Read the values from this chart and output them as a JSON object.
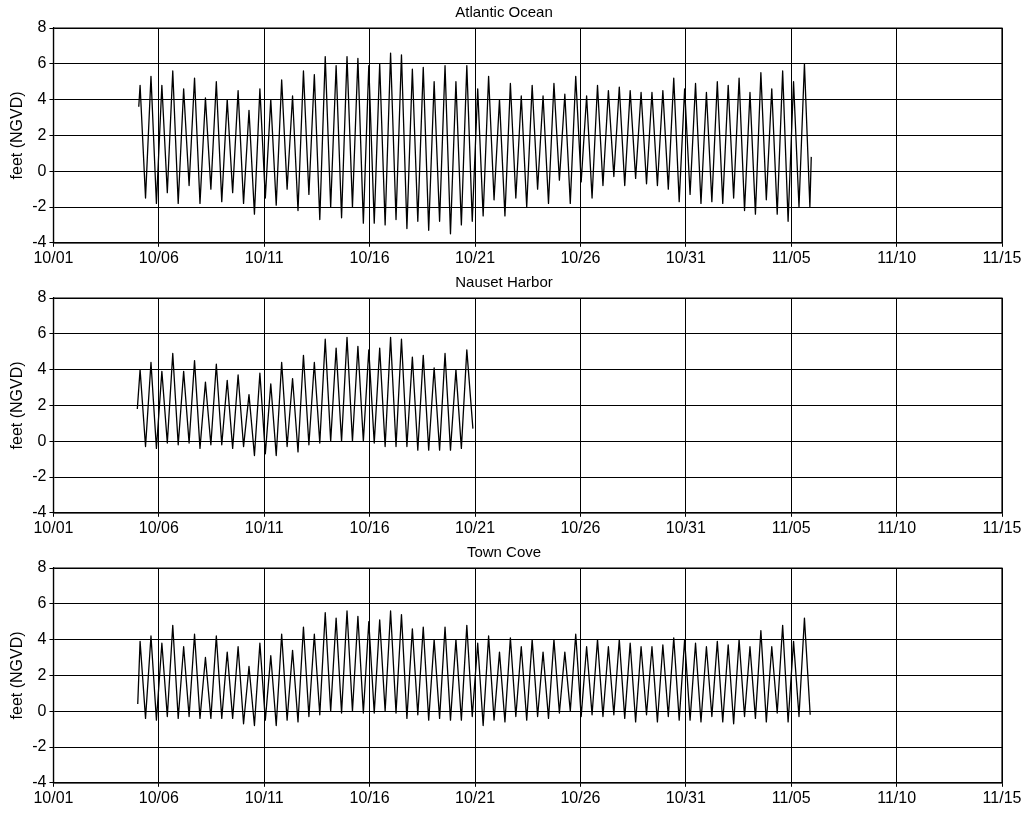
{
  "chart_data": [
    {
      "type": "line",
      "title": "Atlantic Ocean",
      "ylabel": "feet (NGVD)",
      "xlim": [
        "--10-01",
        "--11-15"
      ],
      "xticks": [
        {
          "value": "--10-01",
          "label": "10/01"
        },
        {
          "value": "--10-06",
          "label": "10/06"
        },
        {
          "value": "--10-11",
          "label": "10/11"
        },
        {
          "value": "--10-16",
          "label": "10/16"
        },
        {
          "value": "--10-21",
          "label": "10/21"
        },
        {
          "value": "--10-26",
          "label": "10/26"
        },
        {
          "value": "--10-31",
          "label": "10/31"
        },
        {
          "value": "--11-05",
          "label": "11/05"
        },
        {
          "value": "--11-10",
          "label": "11/10"
        },
        {
          "value": "--11-15",
          "label": "11/15"
        }
      ],
      "ylim": [
        -4,
        8
      ],
      "yticks": [
        -4,
        -2,
        0,
        2,
        4,
        6,
        8
      ],
      "grid": true,
      "marker": "none",
      "line_style": "solid",
      "series": [
        {
          "color": "#000000",
          "x": [
            "--10-05T01:10",
            "--10-05T02:40",
            "--10-05T08:52",
            "--10-05T15:04",
            "--10-05T21:16",
            "--10-06T03:28",
            "--10-06T09:40",
            "--10-06T15:52",
            "--10-06T22:04",
            "--10-07T04:16",
            "--10-07T10:28",
            "--10-07T16:40",
            "--10-07T22:52",
            "--10-08T05:04",
            "--10-08T11:16",
            "--10-08T17:28",
            "--10-08T23:40",
            "--10-09T05:52",
            "--10-09T12:04",
            "--10-09T18:16",
            "--10-10T00:28",
            "--10-10T06:40",
            "--10-10T12:52",
            "--10-10T19:04",
            "--10-11T01:16",
            "--10-11T07:28",
            "--10-11T13:40",
            "--10-11T19:52",
            "--10-12T02:04",
            "--10-12T08:16",
            "--10-12T14:28",
            "--10-12T20:40",
            "--10-13T02:52",
            "--10-13T09:04",
            "--10-13T15:16",
            "--10-13T21:28",
            "--10-14T03:40",
            "--10-14T09:52",
            "--10-14T16:04",
            "--10-14T22:16",
            "--10-15T04:28",
            "--10-15T10:40",
            "--10-15T16:52",
            "--10-15T23:04",
            "--10-16T05:16",
            "--10-16T11:28",
            "--10-16T17:40",
            "--10-16T23:52",
            "--10-17T06:04",
            "--10-17T12:16",
            "--10-17T18:28",
            "--10-18T00:40",
            "--10-18T06:52",
            "--10-18T13:04",
            "--10-18T19:16",
            "--10-19T01:28",
            "--10-19T07:40",
            "--10-19T13:52",
            "--10-19T20:04",
            "--10-20T02:16",
            "--10-20T08:28",
            "--10-20T14:40",
            "--10-20T20:52",
            "--10-21T03:04",
            "--10-21T09:16",
            "--10-21T15:28",
            "--10-21T21:40",
            "--10-22T03:52",
            "--10-22T10:04",
            "--10-22T16:16",
            "--10-22T22:28",
            "--10-23T04:40",
            "--10-23T10:52",
            "--10-23T17:04",
            "--10-23T23:16",
            "--10-24T05:28",
            "--10-24T11:40",
            "--10-24T17:52",
            "--10-25T00:04",
            "--10-25T06:16",
            "--10-25T12:28",
            "--10-25T18:40",
            "--10-26T00:52",
            "--10-26T07:04",
            "--10-26T13:16",
            "--10-26T19:28",
            "--10-27T01:40",
            "--10-27T07:52",
            "--10-27T14:04",
            "--10-27T20:16",
            "--10-28T02:28",
            "--10-28T08:40",
            "--10-28T14:52",
            "--10-28T21:04",
            "--10-29T03:16",
            "--10-29T09:28",
            "--10-29T15:40",
            "--10-29T21:52",
            "--10-30T04:04",
            "--10-30T10:16",
            "--10-30T16:28",
            "--10-30T22:40",
            "--10-31T04:52",
            "--10-31T11:04",
            "--10-31T17:16",
            "--10-31T23:28",
            "--11-01T05:40",
            "--11-01T11:52",
            "--11-01T18:04",
            "--11-02T00:16",
            "--11-02T06:28",
            "--11-02T12:40",
            "--11-02T18:52",
            "--11-03T01:04",
            "--11-03T07:16",
            "--11-03T13:28",
            "--11-03T19:40",
            "--11-04T01:52",
            "--11-04T08:04",
            "--11-04T14:16",
            "--11-04T20:28",
            "--11-05T02:40",
            "--11-05T08:52",
            "--11-05T15:04",
            "--11-05T21:16",
            "--11-05T22:50"
          ],
          "values": [
            3.6,
            4.8,
            -1.5,
            5.3,
            -1.8,
            4.8,
            -1.2,
            5.6,
            -1.8,
            4.6,
            -0.8,
            5.2,
            -1.8,
            4.1,
            -1.0,
            5.0,
            -1.7,
            4.0,
            -1.2,
            4.5,
            -1.8,
            3.4,
            -2.4,
            4.6,
            -1.5,
            4.0,
            -1.9,
            5.1,
            -1.0,
            4.2,
            -2.2,
            5.6,
            -1.3,
            5.4,
            -2.7,
            6.4,
            -2.0,
            5.9,
            -2.6,
            6.4,
            -2.0,
            6.3,
            -2.9,
            5.9,
            -2.9,
            6.0,
            -3.0,
            6.6,
            -2.7,
            6.5,
            -3.2,
            5.7,
            -2.8,
            5.8,
            -3.3,
            5.0,
            -2.8,
            5.9,
            -3.5,
            5.0,
            -3.0,
            5.9,
            -2.8,
            4.6,
            -2.5,
            5.3,
            -1.6,
            4.0,
            -2.5,
            4.9,
            -1.5,
            4.2,
            -2.0,
            4.8,
            -1.0,
            4.2,
            -1.8,
            4.9,
            -0.5,
            4.3,
            -1.8,
            5.3,
            -0.6,
            4.2,
            -1.5,
            4.8,
            -0.8,
            4.5,
            -0.3,
            4.7,
            -0.8,
            4.5,
            -0.4,
            4.4,
            -0.7,
            4.4,
            -0.8,
            4.5,
            -1.0,
            5.2,
            -1.7,
            4.6,
            -1.3,
            4.9,
            -1.8,
            4.4,
            -1.7,
            5.0,
            -1.8,
            4.8,
            -1.5,
            5.2,
            -2.2,
            4.4,
            -2.4,
            5.5,
            -1.6,
            4.6,
            -2.4,
            5.6,
            -2.8,
            5.0,
            -2.0,
            6.0,
            -2.0,
            0.8
          ]
        }
      ]
    },
    {
      "type": "line",
      "title": "Nauset Harbor",
      "ylabel": "feet (NGVD)",
      "xlim": [
        "--10-01",
        "--11-15"
      ],
      "xticks": [
        {
          "value": "--10-01",
          "label": "10/01"
        },
        {
          "value": "--10-06",
          "label": "10/06"
        },
        {
          "value": "--10-11",
          "label": "10/11"
        },
        {
          "value": "--10-16",
          "label": "10/16"
        },
        {
          "value": "--10-21",
          "label": "10/21"
        },
        {
          "value": "--10-26",
          "label": "10/26"
        },
        {
          "value": "--10-31",
          "label": "10/31"
        },
        {
          "value": "--11-05",
          "label": "11/05"
        },
        {
          "value": "--11-10",
          "label": "11/10"
        },
        {
          "value": "--11-15",
          "label": "11/15"
        }
      ],
      "ylim": [
        -4,
        8
      ],
      "yticks": [
        -4,
        -2,
        0,
        2,
        4,
        6,
        8
      ],
      "grid": true,
      "marker": "none",
      "line_style": "solid",
      "series": [
        {
          "color": "#000000",
          "x": [
            "--10-04T23:30",
            "--10-05T02:40",
            "--10-05T08:52",
            "--10-05T15:04",
            "--10-05T21:16",
            "--10-06T03:28",
            "--10-06T09:40",
            "--10-06T15:52",
            "--10-06T22:04",
            "--10-07T04:16",
            "--10-07T10:28",
            "--10-07T16:40",
            "--10-07T22:52",
            "--10-08T05:04",
            "--10-08T11:16",
            "--10-08T17:28",
            "--10-08T23:40",
            "--10-09T05:52",
            "--10-09T12:04",
            "--10-09T18:16",
            "--10-10T00:28",
            "--10-10T06:40",
            "--10-10T12:52",
            "--10-10T19:04",
            "--10-11T01:16",
            "--10-11T07:28",
            "--10-11T13:40",
            "--10-11T19:52",
            "--10-12T02:04",
            "--10-12T08:16",
            "--10-12T14:28",
            "--10-12T20:40",
            "--10-13T02:52",
            "--10-13T09:04",
            "--10-13T15:16",
            "--10-13T21:28",
            "--10-14T03:40",
            "--10-14T09:52",
            "--10-14T16:04",
            "--10-14T22:16",
            "--10-15T04:28",
            "--10-15T10:40",
            "--10-15T16:52",
            "--10-15T23:04",
            "--10-16T05:16",
            "--10-16T11:28",
            "--10-16T17:40",
            "--10-16T23:52",
            "--10-17T06:04",
            "--10-17T12:16",
            "--10-17T18:28",
            "--10-18T00:40",
            "--10-18T06:52",
            "--10-18T13:04",
            "--10-18T19:16",
            "--10-19T01:28",
            "--10-19T07:40",
            "--10-19T13:52",
            "--10-19T20:04",
            "--10-20T02:16",
            "--10-20T08:28",
            "--10-20T14:40",
            "--10-20T21:36"
          ],
          "values": [
            1.8,
            4.0,
            -0.3,
            4.4,
            -0.4,
            3.9,
            -0.1,
            4.9,
            -0.2,
            3.9,
            -0.1,
            4.5,
            -0.4,
            3.3,
            -0.2,
            4.3,
            -0.2,
            3.4,
            -0.4,
            3.7,
            -0.3,
            2.6,
            -0.8,
            3.8,
            -0.7,
            3.2,
            -0.8,
            4.4,
            -0.3,
            3.5,
            -0.6,
            4.8,
            -0.2,
            4.4,
            -0.1,
            5.7,
            0.0,
            5.2,
            0.0,
            5.8,
            0.0,
            5.3,
            0.0,
            5.1,
            -0.1,
            5.2,
            -0.3,
            5.8,
            -0.3,
            5.7,
            -0.3,
            4.7,
            -0.5,
            4.8,
            -0.5,
            4.1,
            -0.5,
            4.9,
            -0.5,
            4.0,
            -0.4,
            5.1,
            0.7
          ]
        }
      ]
    },
    {
      "type": "line",
      "title": "Town Cove",
      "ylabel": "feet (NGVD)",
      "xlim": [
        "--10-01",
        "--11-15"
      ],
      "xticks": [
        {
          "value": "--10-01",
          "label": "10/01"
        },
        {
          "value": "--10-06",
          "label": "10/06"
        },
        {
          "value": "--10-11",
          "label": "10/11"
        },
        {
          "value": "--10-16",
          "label": "10/16"
        },
        {
          "value": "--10-21",
          "label": "10/21"
        },
        {
          "value": "--10-26",
          "label": "10/26"
        },
        {
          "value": "--10-31",
          "label": "10/31"
        },
        {
          "value": "--11-05",
          "label": "11/05"
        },
        {
          "value": "--11-10",
          "label": "11/10"
        },
        {
          "value": "--11-15",
          "label": "11/15"
        }
      ],
      "ylim": [
        -4,
        8
      ],
      "yticks": [
        -4,
        -2,
        0,
        2,
        4,
        6,
        8
      ],
      "grid": true,
      "marker": "none",
      "line_style": "solid",
      "series": [
        {
          "color": "#000000",
          "x": [
            "--10-05T00:00",
            "--10-05T02:40",
            "--10-05T08:52",
            "--10-05T15:04",
            "--10-05T21:16",
            "--10-06T03:28",
            "--10-06T09:40",
            "--10-06T15:52",
            "--10-06T22:04",
            "--10-07T04:16",
            "--10-07T10:28",
            "--10-07T16:40",
            "--10-07T22:52",
            "--10-08T05:04",
            "--10-08T11:16",
            "--10-08T17:28",
            "--10-08T23:40",
            "--10-09T05:52",
            "--10-09T12:04",
            "--10-09T18:16",
            "--10-10T00:28",
            "--10-10T06:40",
            "--10-10T12:52",
            "--10-10T19:04",
            "--10-11T01:16",
            "--10-11T07:28",
            "--10-11T13:40",
            "--10-11T19:52",
            "--10-12T02:04",
            "--10-12T08:16",
            "--10-12T14:28",
            "--10-12T20:40",
            "--10-13T02:52",
            "--10-13T09:04",
            "--10-13T15:16",
            "--10-13T21:28",
            "--10-14T03:40",
            "--10-14T09:52",
            "--10-14T16:04",
            "--10-14T22:16",
            "--10-15T04:28",
            "--10-15T10:40",
            "--10-15T16:52",
            "--10-15T23:04",
            "--10-16T05:16",
            "--10-16T11:28",
            "--10-16T17:40",
            "--10-16T23:52",
            "--10-17T06:04",
            "--10-17T12:16",
            "--10-17T18:28",
            "--10-18T00:40",
            "--10-18T06:52",
            "--10-18T13:04",
            "--10-18T19:16",
            "--10-19T01:28",
            "--10-19T07:40",
            "--10-19T13:52",
            "--10-19T20:04",
            "--10-20T02:16",
            "--10-20T08:28",
            "--10-20T14:40",
            "--10-20T20:52",
            "--10-21T03:04",
            "--10-21T09:16",
            "--10-21T15:28",
            "--10-21T21:40",
            "--10-22T03:52",
            "--10-22T10:04",
            "--10-22T16:16",
            "--10-22T22:28",
            "--10-23T04:40",
            "--10-23T10:52",
            "--10-23T17:04",
            "--10-23T23:16",
            "--10-24T05:28",
            "--10-24T11:40",
            "--10-24T17:52",
            "--10-25T00:04",
            "--10-25T06:16",
            "--10-25T12:28",
            "--10-25T18:40",
            "--10-26T00:52",
            "--10-26T07:04",
            "--10-26T13:16",
            "--10-26T19:28",
            "--10-27T01:40",
            "--10-27T07:52",
            "--10-27T14:04",
            "--10-27T20:16",
            "--10-28T02:28",
            "--10-28T08:40",
            "--10-28T14:52",
            "--10-28T21:04",
            "--10-29T03:16",
            "--10-29T09:28",
            "--10-29T15:40",
            "--10-29T21:52",
            "--10-30T04:04",
            "--10-30T10:16",
            "--10-30T16:28",
            "--10-30T22:40",
            "--10-31T04:52",
            "--10-31T11:04",
            "--10-31T17:16",
            "--10-31T23:28",
            "--11-01T05:40",
            "--11-01T11:52",
            "--11-01T18:04",
            "--11-02T00:16",
            "--11-02T06:28",
            "--11-02T12:40",
            "--11-02T18:52",
            "--11-03T01:04",
            "--11-03T07:16",
            "--11-03T13:28",
            "--11-03T19:40",
            "--11-04T01:52",
            "--11-04T08:04",
            "--11-04T14:16",
            "--11-04T20:28",
            "--11-05T02:40",
            "--11-05T08:52",
            "--11-05T15:04",
            "--11-05T21:36"
          ],
          "values": [
            0.4,
            3.9,
            -0.4,
            4.2,
            -0.5,
            3.8,
            -0.3,
            4.8,
            -0.4,
            3.6,
            -0.3,
            4.3,
            -0.4,
            3.0,
            -0.4,
            4.2,
            -0.4,
            3.3,
            -0.4,
            3.6,
            -0.7,
            2.5,
            -0.8,
            3.8,
            -0.5,
            3.1,
            -0.8,
            4.3,
            -0.5,
            3.4,
            -0.6,
            4.7,
            -0.3,
            4.3,
            -0.2,
            5.5,
            0.0,
            5.2,
            -0.1,
            5.6,
            0.0,
            5.3,
            -0.1,
            5.0,
            -0.1,
            5.1,
            0.0,
            5.6,
            -0.1,
            5.4,
            -0.4,
            4.6,
            -0.2,
            4.7,
            -0.5,
            4.0,
            -0.4,
            4.7,
            -0.5,
            4.0,
            -0.5,
            4.8,
            -0.3,
            3.8,
            -0.8,
            4.2,
            -0.5,
            3.3,
            -0.6,
            4.1,
            -0.3,
            3.6,
            -0.5,
            4.0,
            -0.3,
            3.3,
            -0.4,
            4.0,
            -0.1,
            3.3,
            0.0,
            4.3,
            -0.3,
            3.6,
            -0.2,
            4.0,
            -0.3,
            3.6,
            -0.2,
            4.0,
            -0.4,
            3.8,
            -0.6,
            3.6,
            -0.2,
            3.6,
            -0.6,
            3.7,
            -0.3,
            4.1,
            -0.5,
            4.0,
            -0.5,
            3.8,
            -0.6,
            3.6,
            -0.3,
            3.9,
            -0.6,
            3.7,
            -0.7,
            4.0,
            -0.3,
            3.6,
            -0.4,
            4.5,
            -0.6,
            3.6,
            -0.1,
            4.8,
            -0.6,
            3.9,
            -0.3,
            5.2,
            -0.2
          ]
        }
      ]
    }
  ]
}
